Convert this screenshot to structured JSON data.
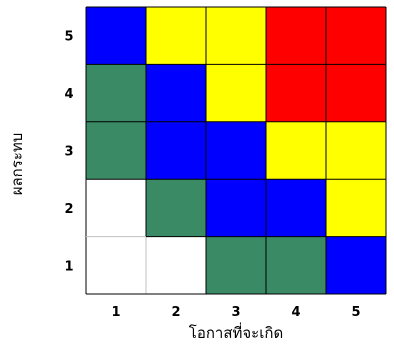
{
  "chart_data": {
    "type": "heatmap",
    "xlabel": "โอกาสที่จะเกิด",
    "ylabel": "ผลกระทบ",
    "x_categories": [
      "1",
      "2",
      "3",
      "4",
      "5"
    ],
    "y_categories": [
      "1",
      "2",
      "3",
      "4",
      "5"
    ],
    "color_map": {
      "white": "#ffffff",
      "green": "#3a8a66",
      "blue": "#0000ff",
      "yellow": "#ffff00",
      "red": "#ff0000"
    },
    "cells": [
      [
        "white",
        "white",
        "green",
        "green",
        "blue"
      ],
      [
        "white",
        "green",
        "blue",
        "blue",
        "yellow"
      ],
      [
        "green",
        "blue",
        "blue",
        "yellow",
        "yellow"
      ],
      [
        "green",
        "blue",
        "yellow",
        "red",
        "red"
      ],
      [
        "blue",
        "yellow",
        "yellow",
        "red",
        "red"
      ]
    ],
    "gridline_color": "#000000",
    "light_gridline_color": "#c0c0c0"
  }
}
